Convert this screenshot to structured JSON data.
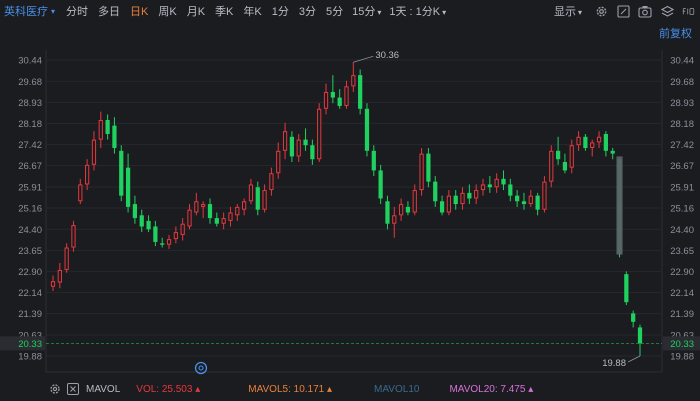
{
  "stock": {
    "name": "英科医疗"
  },
  "periods": [
    "分时",
    "多日",
    "日K",
    "周K",
    "月K",
    "季K",
    "年K",
    "1分",
    "3分",
    "5分"
  ],
  "active_period": "日K",
  "dropdowns": {
    "minute": "15分",
    "multi": "1天 : 1分K"
  },
  "display_label": "显示",
  "adjust_label": "前复权",
  "colors": {
    "up": "#e6383d",
    "down": "#1fd15f",
    "accent": "#e8803a",
    "link": "#4a8fe8",
    "price_line": "#1fd15f"
  },
  "chart_data": {
    "type": "candlestick",
    "y_ticks": [
      "30.44",
      "29.68",
      "28.93",
      "28.18",
      "27.42",
      "26.67",
      "25.91",
      "25.16",
      "24.40",
      "23.65",
      "22.90",
      "22.14",
      "21.39",
      "20.63",
      "19.88"
    ],
    "ylim": [
      19.88,
      30.44
    ],
    "current_price": "20.33",
    "max_label": "30.36",
    "min_label": "19.88",
    "candles": [
      {
        "o": 22.35,
        "h": 22.75,
        "l": 22.2,
        "c": 22.55
      },
      {
        "o": 22.5,
        "h": 23.2,
        "l": 22.3,
        "c": 22.95
      },
      {
        "o": 22.95,
        "h": 23.9,
        "l": 22.85,
        "c": 23.75
      },
      {
        "o": 23.75,
        "h": 24.7,
        "l": 23.6,
        "c": 24.55
      },
      {
        "o": 25.4,
        "h": 26.2,
        "l": 25.3,
        "c": 26.0
      },
      {
        "o": 26.0,
        "h": 26.9,
        "l": 25.8,
        "c": 26.7
      },
      {
        "o": 26.7,
        "h": 27.9,
        "l": 26.5,
        "c": 27.6
      },
      {
        "o": 27.6,
        "h": 28.6,
        "l": 27.3,
        "c": 28.3
      },
      {
        "o": 28.3,
        "h": 28.5,
        "l": 27.6,
        "c": 27.8
      },
      {
        "o": 28.1,
        "h": 28.4,
        "l": 27.1,
        "c": 27.3
      },
      {
        "o": 27.2,
        "h": 27.4,
        "l": 25.4,
        "c": 25.6
      },
      {
        "o": 26.6,
        "h": 27.1,
        "l": 25.0,
        "c": 25.2
      },
      {
        "o": 25.3,
        "h": 25.6,
        "l": 24.6,
        "c": 24.8
      },
      {
        "o": 24.9,
        "h": 25.1,
        "l": 24.3,
        "c": 24.5
      },
      {
        "o": 24.7,
        "h": 24.9,
        "l": 24.3,
        "c": 24.4
      },
      {
        "o": 24.5,
        "h": 24.7,
        "l": 23.8,
        "c": 23.95
      },
      {
        "o": 23.9,
        "h": 24.1,
        "l": 23.75,
        "c": 23.85
      },
      {
        "o": 23.85,
        "h": 24.2,
        "l": 23.7,
        "c": 24.05
      },
      {
        "o": 24.05,
        "h": 24.5,
        "l": 23.9,
        "c": 24.3
      },
      {
        "o": 24.2,
        "h": 24.8,
        "l": 24.0,
        "c": 24.6
      },
      {
        "o": 24.5,
        "h": 25.3,
        "l": 24.4,
        "c": 25.1
      },
      {
        "o": 25.0,
        "h": 25.7,
        "l": 24.9,
        "c": 25.4
      },
      {
        "o": 25.2,
        "h": 25.4,
        "l": 24.8,
        "c": 25.3
      },
      {
        "o": 25.3,
        "h": 25.5,
        "l": 24.6,
        "c": 24.8
      },
      {
        "o": 24.8,
        "h": 25.0,
        "l": 24.5,
        "c": 24.6
      },
      {
        "o": 24.6,
        "h": 25.0,
        "l": 24.4,
        "c": 24.8
      },
      {
        "o": 24.7,
        "h": 25.2,
        "l": 24.5,
        "c": 25.0
      },
      {
        "o": 24.9,
        "h": 25.3,
        "l": 24.7,
        "c": 25.2
      },
      {
        "o": 25.1,
        "h": 25.5,
        "l": 24.9,
        "c": 25.4
      },
      {
        "o": 25.4,
        "h": 26.2,
        "l": 25.3,
        "c": 26.0
      },
      {
        "o": 25.9,
        "h": 26.1,
        "l": 24.9,
        "c": 25.1
      },
      {
        "o": 25.1,
        "h": 26.0,
        "l": 25.0,
        "c": 25.8
      },
      {
        "o": 25.8,
        "h": 26.6,
        "l": 25.6,
        "c": 26.4
      },
      {
        "o": 26.4,
        "h": 27.5,
        "l": 26.2,
        "c": 27.2
      },
      {
        "o": 27.2,
        "h": 28.2,
        "l": 26.9,
        "c": 27.9
      },
      {
        "o": 27.7,
        "h": 27.9,
        "l": 26.8,
        "c": 27.0
      },
      {
        "o": 27.0,
        "h": 27.8,
        "l": 26.8,
        "c": 27.6
      },
      {
        "o": 27.6,
        "h": 28.0,
        "l": 27.2,
        "c": 27.4
      },
      {
        "o": 27.4,
        "h": 27.6,
        "l": 26.7,
        "c": 26.9
      },
      {
        "o": 26.9,
        "h": 28.9,
        "l": 26.8,
        "c": 28.7
      },
      {
        "o": 28.7,
        "h": 29.6,
        "l": 28.5,
        "c": 29.3
      },
      {
        "o": 29.3,
        "h": 29.9,
        "l": 28.9,
        "c": 29.1
      },
      {
        "o": 29.1,
        "h": 29.4,
        "l": 28.7,
        "c": 28.8
      },
      {
        "o": 28.8,
        "h": 29.7,
        "l": 28.7,
        "c": 29.5
      },
      {
        "o": 29.5,
        "h": 30.36,
        "l": 29.3,
        "c": 29.9
      },
      {
        "o": 29.9,
        "h": 30.1,
        "l": 28.5,
        "c": 28.7
      },
      {
        "o": 28.7,
        "h": 28.9,
        "l": 27.0,
        "c": 27.2
      },
      {
        "o": 27.2,
        "h": 27.4,
        "l": 26.3,
        "c": 26.5
      },
      {
        "o": 26.5,
        "h": 26.7,
        "l": 25.3,
        "c": 25.5
      },
      {
        "o": 25.4,
        "h": 25.6,
        "l": 24.4,
        "c": 24.6
      },
      {
        "o": 24.6,
        "h": 25.2,
        "l": 24.1,
        "c": 24.9
      },
      {
        "o": 24.9,
        "h": 25.5,
        "l": 24.7,
        "c": 25.3
      },
      {
        "o": 25.2,
        "h": 25.4,
        "l": 24.9,
        "c": 25.0
      },
      {
        "o": 25.0,
        "h": 26.0,
        "l": 24.9,
        "c": 25.8
      },
      {
        "o": 25.8,
        "h": 27.3,
        "l": 25.6,
        "c": 27.1
      },
      {
        "o": 27.1,
        "h": 27.3,
        "l": 25.9,
        "c": 26.1
      },
      {
        "o": 26.1,
        "h": 26.3,
        "l": 25.2,
        "c": 25.4
      },
      {
        "o": 25.4,
        "h": 25.6,
        "l": 24.9,
        "c": 25.0
      },
      {
        "o": 25.0,
        "h": 25.8,
        "l": 24.9,
        "c": 25.6
      },
      {
        "o": 25.6,
        "h": 25.8,
        "l": 25.1,
        "c": 25.3
      },
      {
        "o": 25.3,
        "h": 25.9,
        "l": 25.1,
        "c": 25.7
      },
      {
        "o": 25.7,
        "h": 26.0,
        "l": 25.3,
        "c": 25.5
      },
      {
        "o": 25.5,
        "h": 26.0,
        "l": 25.3,
        "c": 25.8
      },
      {
        "o": 25.8,
        "h": 26.2,
        "l": 25.6,
        "c": 26.0
      },
      {
        "o": 26.0,
        "h": 26.3,
        "l": 25.7,
        "c": 25.9
      },
      {
        "o": 25.9,
        "h": 26.4,
        "l": 25.7,
        "c": 26.2
      },
      {
        "o": 26.2,
        "h": 26.5,
        "l": 25.8,
        "c": 26.0
      },
      {
        "o": 26.0,
        "h": 26.2,
        "l": 25.4,
        "c": 25.6
      },
      {
        "o": 25.6,
        "h": 25.8,
        "l": 25.2,
        "c": 25.4
      },
      {
        "o": 25.4,
        "h": 25.7,
        "l": 25.1,
        "c": 25.3
      },
      {
        "o": 25.3,
        "h": 25.8,
        "l": 25.2,
        "c": 25.6
      },
      {
        "o": 25.6,
        "h": 25.7,
        "l": 24.9,
        "c": 25.1
      },
      {
        "o": 25.1,
        "h": 26.3,
        "l": 25.0,
        "c": 26.1
      },
      {
        "o": 26.1,
        "h": 27.4,
        "l": 25.9,
        "c": 27.2
      },
      {
        "o": 27.2,
        "h": 27.7,
        "l": 26.7,
        "c": 26.9
      },
      {
        "o": 26.8,
        "h": 27.1,
        "l": 26.4,
        "c": 26.5
      },
      {
        "o": 26.6,
        "h": 27.6,
        "l": 26.4,
        "c": 27.4
      },
      {
        "o": 27.4,
        "h": 27.9,
        "l": 27.2,
        "c": 27.7
      },
      {
        "o": 27.7,
        "h": 27.8,
        "l": 27.2,
        "c": 27.3
      },
      {
        "o": 27.3,
        "h": 27.6,
        "l": 27.0,
        "c": 27.5
      },
      {
        "o": 27.5,
        "h": 27.9,
        "l": 27.3,
        "c": 27.7
      },
      {
        "o": 27.8,
        "h": 27.9,
        "l": 27.0,
        "c": 27.2
      },
      {
        "o": 27.2,
        "h": 27.3,
        "l": 26.9,
        "c": 27.1
      },
      {
        "o": 26.9,
        "h": 27.0,
        "l": 23.4,
        "c": 23.5
      },
      {
        "o": 22.8,
        "h": 22.9,
        "l": 21.7,
        "c": 21.8
      },
      {
        "o": 21.4,
        "h": 21.5,
        "l": 20.9,
        "c": 21.1
      },
      {
        "o": 20.9,
        "h": 21.0,
        "l": 19.88,
        "c": 20.33
      }
    ]
  },
  "indicators": {
    "name": "MAVOL",
    "vol": "VOL: 25.503",
    "ma5": "MAVOL5: 10.171",
    "ma10": "MAVOL10",
    "ma20": "MAVOL20: 7.475",
    "colors": {
      "vol": "#e6383d",
      "ma5": "#e8803a",
      "ma10": "#3b6a8c",
      "ma20": "#d870d8"
    }
  }
}
